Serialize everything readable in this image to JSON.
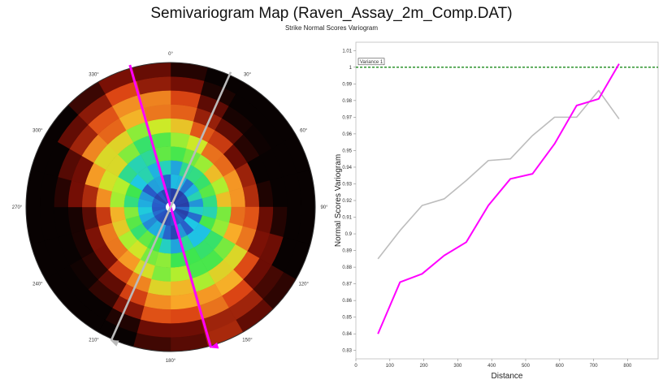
{
  "header": {
    "title": "Semivariogram Map (Raven_Assay_2m_Comp.DAT)",
    "subtitle": "Strike Normal Scores Variogram"
  },
  "chart_data": [
    {
      "type": "heatmap",
      "projection": "polar",
      "angle_labels": [
        "0°",
        "30°",
        "60°",
        "90°",
        "120°",
        "150°",
        "180°",
        "210°",
        "240°",
        "270°",
        "300°",
        "330°"
      ],
      "ring_count": 10,
      "sector_count": 24,
      "colormap": "black-red-orange-yellow-green-cyan-blue (low values near center are blue/cyan)",
      "arrows": [
        {
          "name": "magenta",
          "color": "#ff00ff",
          "azimuth_deg": 164
        },
        {
          "name": "gray",
          "color": "#bbbbbb",
          "azimuth_deg": 204
        }
      ]
    },
    {
      "type": "line",
      "xlabel": "Distance",
      "ylabel": "Normal Scores Variogram",
      "xlim": [
        0,
        890
      ],
      "ylim": [
        0.825,
        1.015
      ],
      "x_ticks": [
        "0",
        "100",
        "200",
        "300",
        "400",
        "500",
        "600",
        "700",
        "800"
      ],
      "y_ticks": [
        "0.83",
        "0.84",
        "0.85",
        "0.86",
        "0.87",
        "0.88",
        "0.89",
        "0.9",
        "0.91",
        "0.92",
        "0.93",
        "0.94",
        "0.95",
        "0.96",
        "0.97",
        "0.98",
        "0.99",
        "1",
        "1.01"
      ],
      "reference_line": {
        "label": "Variance 1",
        "value": 1.0,
        "color": "#1a8a1a",
        "style": "dashed"
      },
      "series": [
        {
          "color": "#bdbdbd",
          "x": [
            65,
            130,
            195,
            260,
            325,
            390,
            455,
            520,
            585,
            650,
            715,
            775
          ],
          "y": [
            0.885,
            0.902,
            0.917,
            0.921,
            0.932,
            0.944,
            0.945,
            0.959,
            0.97,
            0.97,
            0.986,
            0.969
          ]
        },
        {
          "color": "#ff00ff",
          "x": [
            65,
            130,
            195,
            260,
            325,
            390,
            455,
            520,
            585,
            650,
            715,
            775
          ],
          "y": [
            0.84,
            0.871,
            0.876,
            0.887,
            0.895,
            0.917,
            0.933,
            0.936,
            0.954,
            0.977,
            0.981,
            1.002
          ]
        }
      ]
    }
  ]
}
